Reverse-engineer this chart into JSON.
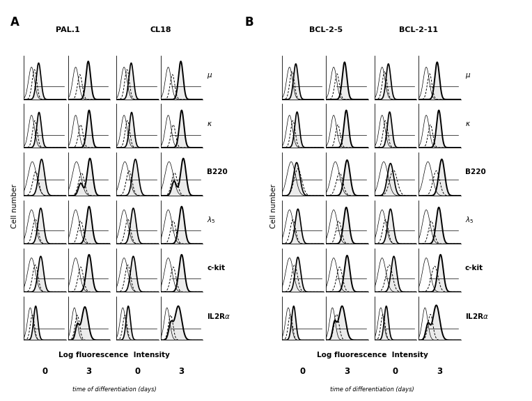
{
  "fig_width": 7.64,
  "fig_height": 5.76,
  "dpi": 100,
  "background": "white",
  "clone_titles_A": [
    "PAL.1",
    "CL18"
  ],
  "clone_titles_B": [
    "BCL-2-5",
    "BCL-2-11"
  ],
  "markers": [
    "μ",
    "κ",
    "B220",
    "λ5",
    "c-kit",
    "IL2Rα"
  ],
  "xlabel": "Log fluorescence  Intensity",
  "time_label": "time of differentiation (days)",
  "time_points": [
    "0",
    "3",
    "0",
    "3"
  ],
  "cell_number_label": "Cell number",
  "panel_A_label": "A",
  "panel_B_label": "B"
}
